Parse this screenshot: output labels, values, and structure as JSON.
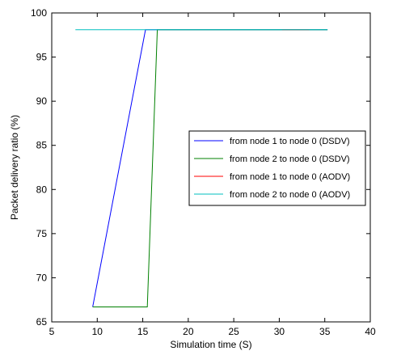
{
  "chart_data": {
    "type": "line",
    "xlabel": "Simulation time (S)",
    "ylabel": "Packet delivery ratio (%)",
    "xlim": [
      5,
      40
    ],
    "ylim": [
      65,
      100
    ],
    "xticks": [
      5,
      10,
      15,
      20,
      25,
      30,
      35,
      40
    ],
    "yticks": [
      65,
      70,
      75,
      80,
      85,
      90,
      95,
      100
    ],
    "grid": false,
    "legend_position": "right",
    "series": [
      {
        "name": "from node 1 to node 0 (DSDV)",
        "color": "#0000ff",
        "x": [
          9.5,
          15.3,
          35.3
        ],
        "y": [
          66.7,
          98.1,
          98.1
        ]
      },
      {
        "name": "from node 2 to node 0 (DSDV)",
        "color": "#008000",
        "x": [
          9.5,
          15.5,
          16.6,
          35.3
        ],
        "y": [
          66.7,
          66.7,
          98.1,
          98.1
        ]
      },
      {
        "name": "from node 1 to node 0 (AODV)",
        "color": "#ff0000",
        "x": [
          30.3,
          33.3
        ],
        "y": [
          98.1,
          98.1
        ]
      },
      {
        "name": "from node 2 to node 0 (AODV)",
        "color": "#00bfbf",
        "x": [
          7.6,
          30.3,
          33.3,
          35.3
        ],
        "y": [
          98.1,
          98.1,
          98.1,
          98.1
        ]
      }
    ]
  }
}
